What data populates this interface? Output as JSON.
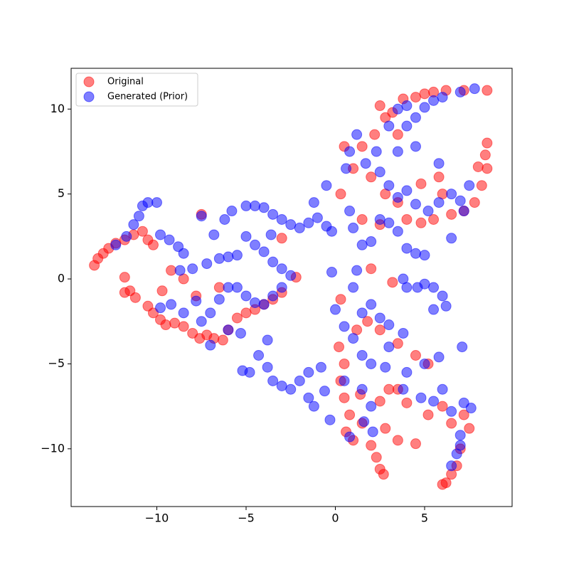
{
  "chart_data": {
    "type": "scatter",
    "xlim": [
      -14.8,
      9.9
    ],
    "ylim": [
      -13.4,
      12.4
    ],
    "xticks": [
      {
        "value": -10,
        "label": "−10"
      },
      {
        "value": -5,
        "label": "−5"
      },
      0,
      5
    ],
    "yticks": [
      {
        "value": -10,
        "label": "−10"
      },
      {
        "value": -5,
        "label": "−5"
      },
      0,
      5,
      10
    ],
    "legend": "upper left",
    "series": [
      {
        "name": "Original",
        "color": "#ff0000",
        "x": [
          -13.5,
          -13.3,
          -13,
          -12.7,
          -12.3,
          -11.8,
          -11.3,
          -10.8,
          -10.5,
          -10.2,
          -11.8,
          -11.8,
          -11.5,
          -11.2,
          -10.5,
          -10.2,
          -9.8,
          -9.5,
          -9,
          -8.5,
          -8,
          -7.6,
          -7.2,
          -6.8,
          -6.3,
          -6,
          -5.5,
          -5,
          -4.5,
          -4,
          -3.5,
          -3,
          -9.7,
          -9.2,
          -8.5,
          -7.5,
          -7.8,
          -6.5,
          -3,
          -2.2,
          2.5,
          2.8,
          3.2,
          3.8,
          4.5,
          5,
          5.5,
          6.2,
          7.2,
          8.5,
          2.2,
          1.5,
          0.5,
          1,
          2,
          2.8,
          3.5,
          4,
          4.8,
          5.5,
          6.5,
          7.2,
          7.8,
          8.2,
          8.5,
          8.4,
          8.5,
          8,
          5.8,
          6,
          4.8,
          3.5,
          2,
          1.5,
          0.3,
          2.5,
          0.2,
          0.5,
          0.3,
          0.5,
          0.8,
          0.6,
          1,
          1.5,
          2,
          2.3,
          2.5,
          2.7,
          1.2,
          1.8,
          2.5,
          3.5,
          4.5,
          5.2,
          3,
          3.5,
          4,
          5.2,
          6,
          6.5,
          7.2,
          7.5,
          7,
          6.8,
          6.5,
          6,
          6.2,
          4.5,
          3.5,
          2.8,
          0.3,
          3.2,
          2.5,
          1.4
        ],
        "y": [
          0.8,
          1.2,
          1.5,
          1.8,
          2.1,
          2.3,
          2.6,
          2.8,
          2.3,
          2,
          0.1,
          -0.8,
          -0.7,
          -1.1,
          -1.6,
          -2,
          -2.4,
          -2.7,
          -2.6,
          -2.8,
          -3.2,
          -3.5,
          -3.3,
          -3.5,
          -3.6,
          -3,
          -2.3,
          -2,
          -1.8,
          -1.5,
          -1.2,
          -0.8,
          -0.7,
          0.5,
          0,
          3.8,
          -1,
          -0.5,
          2.4,
          0.1,
          10.2,
          9.5,
          9.8,
          10.6,
          10.7,
          10.9,
          11,
          11.1,
          11.1,
          11.1,
          8.5,
          7.8,
          7.8,
          6.5,
          6,
          5,
          4.5,
          3.5,
          3.3,
          3.5,
          3.8,
          4,
          4.5,
          5.5,
          6.5,
          7.3,
          8,
          6.6,
          6,
          5,
          5.6,
          8.5,
          0.6,
          3.5,
          5,
          3.2,
          -4,
          -5,
          -6,
          -7,
          -8,
          -9,
          -9.5,
          -8.5,
          -9.8,
          -10.5,
          -11.2,
          -11.5,
          -3,
          -2.5,
          -3,
          -3.8,
          -4.5,
          -5,
          -6.5,
          -6.5,
          -7.3,
          -8,
          -7.5,
          -8.5,
          -8,
          -8.8,
          -10,
          -11,
          -11.5,
          -12.1,
          -12,
          -9.7,
          -9.5,
          -8.8,
          -1.2,
          -0.2,
          -7.2,
          -6.8
        ]
      },
      {
        "name": "Generated (Prior)",
        "color": "#0000ff",
        "x": [
          -10.5,
          -10,
          -10.8,
          -11,
          -11.3,
          -11.7,
          -12.3,
          -9.8,
          -9.3,
          -8.8,
          -8.5,
          -8.7,
          -8,
          -7.2,
          -6.5,
          -6,
          -5.5,
          -7.5,
          -6.8,
          -6.2,
          -5.8,
          -5,
          -4.5,
          -4,
          -3.5,
          -3,
          -2.5,
          -2,
          -1.5,
          -1,
          -0.5,
          -0.5,
          -1.2,
          -0.2,
          -5,
          -4.5,
          -4,
          -3.6,
          -3.5,
          -3,
          -2.5,
          -3,
          -3.5,
          -4,
          -4.5,
          -5,
          -5.5,
          -6,
          -6.5,
          -7,
          -7.5,
          -7,
          -6,
          -9.8,
          -9.2,
          -8.5,
          -7.8,
          -5.2,
          -4.8,
          -4.3,
          -3.8,
          -3.5,
          -3,
          -2.5,
          -2,
          -1.5,
          -1.5,
          -1.2,
          -0.6,
          -0.8,
          -5.3,
          -3.8,
          0.6,
          0.8,
          1.2,
          1.7,
          2.3,
          2.5,
          3,
          3.5,
          4,
          4.5,
          5.2,
          5.8,
          6.5,
          7,
          7.5,
          7.2,
          5.8,
          3.5,
          4.5,
          3.5,
          4,
          4.5,
          5,
          6,
          7,
          7.8,
          5.5,
          3,
          4,
          0.8,
          1,
          1.5,
          2,
          2.5,
          3,
          3.5,
          4,
          4.5,
          5,
          -0.2,
          1.2,
          1,
          3.8,
          4,
          5,
          5.5,
          6,
          6.2,
          4.6,
          5.5,
          6.5,
          2,
          1.5,
          2.5,
          3,
          3.8,
          0,
          0.5,
          1,
          1.5,
          2,
          2.8,
          4,
          5,
          3,
          0.5,
          1.5,
          2,
          3.8,
          4.8,
          5.5,
          6,
          6.5,
          7.2,
          7.6,
          7,
          7,
          6.8,
          6.5,
          -0.3,
          0.8,
          1.6,
          2.1,
          7.1,
          5.8
        ],
        "y": [
          4.5,
          4.5,
          4.3,
          3.7,
          3.2,
          2.5,
          2,
          2.6,
          2.3,
          1.9,
          1.5,
          0.5,
          0.6,
          0.9,
          1.2,
          1.3,
          1.4,
          3.7,
          2.6,
          3.5,
          4,
          4.3,
          4.3,
          4.2,
          3.8,
          3.5,
          3.2,
          3,
          3.3,
          3.6,
          3.1,
          5.5,
          4.5,
          2.8,
          2.5,
          2,
          1.6,
          2.6,
          1,
          0.6,
          0.2,
          -0.5,
          -1,
          -1.5,
          -1.4,
          -1,
          -0.5,
          -0.5,
          -1.2,
          -2,
          -2.5,
          -3.9,
          -3,
          -1.7,
          -1.5,
          -2,
          -1.3,
          -5.4,
          -5.5,
          -4.5,
          -5.2,
          -6,
          -6.3,
          -6.5,
          -6,
          -5.5,
          -7,
          -7.5,
          -6.6,
          -5.2,
          -3.2,
          -3.6,
          6.5,
          7.5,
          8.5,
          6.8,
          7.5,
          6.3,
          5.5,
          4.8,
          5.2,
          4.4,
          4,
          4.5,
          5,
          4.6,
          5.5,
          4,
          6.8,
          7.5,
          7.8,
          10,
          10.2,
          9.5,
          10.1,
          10.7,
          11,
          11.2,
          10.5,
          9,
          9,
          4,
          3,
          2,
          2.2,
          3.5,
          3.3,
          2.8,
          1.8,
          1.5,
          1.4,
          0.4,
          0.5,
          -0.5,
          0,
          -0.5,
          -0.3,
          -0.5,
          -1,
          -1.6,
          -0.5,
          -1.8,
          2.4,
          -1.5,
          -2,
          -2.3,
          -2.7,
          -3.2,
          -1.8,
          -2.8,
          -3.5,
          -4.5,
          -5,
          -5.2,
          -5.5,
          -5,
          -4,
          -6,
          -6.5,
          -7.5,
          -6.5,
          -7,
          -7.2,
          -6.5,
          -7.8,
          -7.3,
          -7.6,
          -9.2,
          -9.8,
          -10.3,
          -11,
          -8.3,
          -9.3,
          -8.4,
          -9,
          -4,
          -4.6
        ]
      }
    ]
  }
}
